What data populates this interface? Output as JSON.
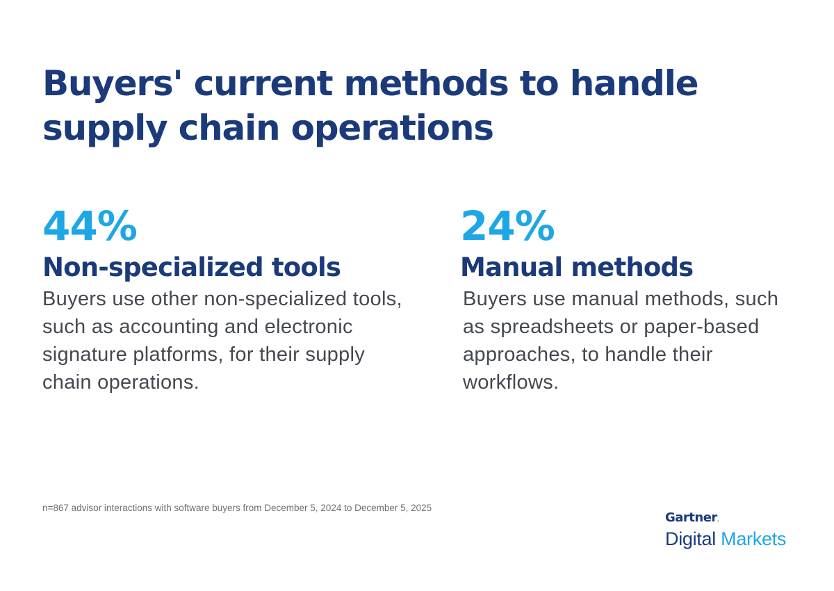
{
  "header": {
    "title": "Buyers' current methods to handle supply chain operations"
  },
  "stats": [
    {
      "percent": "44%",
      "title": "Non-specialized tools",
      "description": "Buyers use other non-specialized tools, such as accounting and electronic signature platforms, for their supply chain operations."
    },
    {
      "percent": "24%",
      "title": "Manual methods",
      "description": "Buyers use manual methods, such as spreadsheets or paper-based approaches, to handle their workflows."
    }
  ],
  "footnote": "n=867 advisor interactions with software buyers from December 5, 2024 to December 5, 2025",
  "logo": {
    "brand": "Gartner",
    "registered": ".",
    "line2_part1": "Digital",
    "line2_part2": "Markets"
  },
  "colors": {
    "navy": "#1b3a7a",
    "accent_blue": "#1ea7e4",
    "body_text": "#44484f",
    "footnote_text": "#6d7075"
  }
}
